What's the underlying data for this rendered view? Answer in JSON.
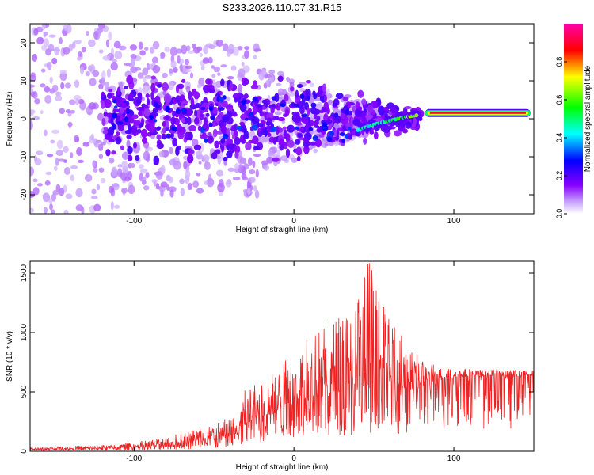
{
  "chart_data": [
    {
      "type": "heatmap",
      "title": "S233.2026.110.07.31.R15",
      "xlabel": "Height of straight line (km)",
      "ylabel": "Frequency (Hz)",
      "xlim": [
        -165,
        150
      ],
      "ylim": [
        -25,
        25
      ],
      "xticks": [
        "-100",
        "0",
        "100"
      ],
      "xtick_values": [
        -100,
        0,
        100
      ],
      "yticks": [
        "-20",
        "-10",
        "0",
        "10",
        "20"
      ],
      "ytick_values": [
        -20,
        -10,
        0,
        10,
        20
      ],
      "colorbar": {
        "label": "Normalized spectral amplitude",
        "range": [
          0,
          1
        ],
        "ticks": [
          "0.0",
          "0.2",
          "0.4",
          "0.6",
          "0.8"
        ],
        "tick_values": [
          0,
          0.2,
          0.4,
          0.6,
          0.8
        ],
        "colormap": [
          "#ffffff",
          "#8800ff",
          "#0000ff",
          "#00ffff",
          "#00ff00",
          "#ffff00",
          "#ff0000",
          "#ff00aa"
        ]
      },
      "description_data": {
        "steady_tone": {
          "x_start": 82,
          "x_end": 148,
          "frequency_hz": 1.5,
          "amplitude": 1.0
        },
        "chirp_track": [
          {
            "x": 40,
            "f": -3,
            "a": 0.45
          },
          {
            "x": 50,
            "f": -1.5,
            "a": 0.5
          },
          {
            "x": 60,
            "f": -0.5,
            "a": 0.55
          },
          {
            "x": 70,
            "f": 0.5,
            "a": 0.6
          },
          {
            "x": 78,
            "f": 1.0,
            "a": 0.7
          }
        ]
      }
    },
    {
      "type": "line",
      "xlabel": "Height of straight line (km)",
      "ylabel": "SNR (10 * v/v)",
      "xlim": [
        -165,
        150
      ],
      "ylim": [
        0,
        1600
      ],
      "xticks": [
        "-100",
        "0",
        "100"
      ],
      "xtick_values": [
        -100,
        0,
        100
      ],
      "yticks": [
        "0",
        "500",
        "1000",
        "1500"
      ],
      "ytick_values": [
        0,
        500,
        1000,
        1500
      ],
      "color": "#ee2222",
      "envelope": [
        {
          "x": -165,
          "base": 15,
          "peak": 30
        },
        {
          "x": -110,
          "base": 20,
          "peak": 60
        },
        {
          "x": -80,
          "base": 40,
          "peak": 120
        },
        {
          "x": -50,
          "base": 80,
          "peak": 250
        },
        {
          "x": -35,
          "base": 120,
          "peak": 300
        },
        {
          "x": -30,
          "base": 200,
          "peak": 550
        },
        {
          "x": -10,
          "base": 300,
          "peak": 700
        },
        {
          "x": 10,
          "base": 380,
          "peak": 1000
        },
        {
          "x": 30,
          "base": 420,
          "peak": 1200
        },
        {
          "x": 47,
          "base": 450,
          "peak": 1590
        },
        {
          "x": 60,
          "base": 450,
          "peak": 1100
        },
        {
          "x": 75,
          "base": 500,
          "peak": 850
        },
        {
          "x": 90,
          "base": 560,
          "peak": 720
        },
        {
          "x": 100,
          "base": 620,
          "peak": 700
        },
        {
          "x": 150,
          "base": 630,
          "peak": 680
        }
      ]
    }
  ]
}
